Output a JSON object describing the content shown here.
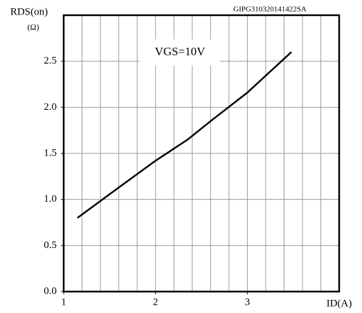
{
  "chart_data": {
    "type": "line",
    "ylabel": "RDS(on)",
    "yunit": "(Ω)",
    "xlabel": "ID(A)",
    "annotation": "VGS=10V",
    "watermark": "GIPG310320141422SA",
    "x": [
      1.15,
      1.6,
      2.0,
      2.35,
      2.6,
      3.0,
      3.48
    ],
    "series": [
      {
        "name": "VGS=10V",
        "color": "#000000",
        "values": [
          0.8,
          1.13,
          1.42,
          1.65,
          1.85,
          2.16,
          2.6
        ]
      }
    ],
    "xlim": [
      1,
      4
    ],
    "ylim": [
      0,
      3
    ],
    "xticks": [
      1,
      2,
      3
    ],
    "xgrid": [
      1.2,
      1.4,
      1.6,
      1.8,
      2,
      2.2,
      2.4,
      2.6,
      2.8,
      3,
      3.2,
      3.4,
      3.6,
      3.8
    ],
    "yticks": [
      {
        "value": 0,
        "label": "0.0"
      },
      0.5,
      {
        "value": 1,
        "label": "1.0"
      },
      1.5,
      {
        "value": 2,
        "label": "2.0"
      },
      2.5
    ],
    "ygrid": [
      0.5,
      1,
      1.5,
      2,
      2.5
    ],
    "grid": true
  }
}
